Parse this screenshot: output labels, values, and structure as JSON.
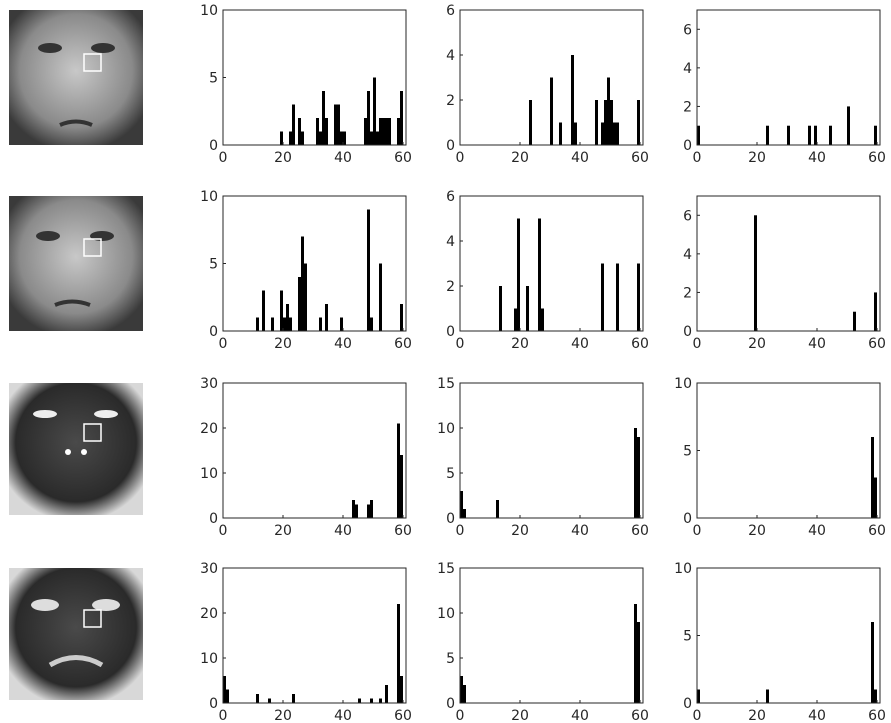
{
  "chart_data": [
    {
      "type": "bar",
      "color": "#000000",
      "x": [
        19,
        22,
        23,
        25,
        26,
        31,
        32,
        33,
        34,
        37,
        38,
        39,
        40,
        47,
        48,
        49,
        50,
        51,
        52,
        53,
        54,
        55,
        58,
        59
      ],
      "values": [
        1,
        1,
        3,
        2,
        1,
        2,
        1,
        4,
        2,
        3,
        3,
        1,
        1,
        2,
        4,
        1,
        5,
        1,
        2,
        2,
        2,
        2,
        2,
        4
      ],
      "xlim": [
        0,
        61
      ],
      "xticks": [
        0,
        20,
        40,
        60
      ],
      "ylim": [
        0,
        10
      ],
      "yticks": [
        0,
        5,
        10
      ]
    },
    {
      "type": "bar",
      "color": "#000000",
      "x": [
        23,
        30,
        33,
        37,
        38,
        45,
        47,
        48,
        49,
        50,
        51,
        52,
        59
      ],
      "values": [
        2,
        3,
        1,
        4,
        1,
        2,
        1,
        2,
        3,
        2,
        1,
        1,
        2
      ],
      "xlim": [
        0,
        61
      ],
      "xticks": [
        0,
        20,
        40,
        60
      ],
      "ylim": [
        0,
        6
      ],
      "yticks": [
        0,
        2,
        4,
        6
      ]
    },
    {
      "type": "bar",
      "color": "#000000",
      "x": [
        0,
        23,
        30,
        37,
        39,
        44,
        50,
        59
      ],
      "values": [
        1,
        1,
        1,
        1,
        1,
        1,
        2,
        1
      ],
      "xlim": [
        0,
        61
      ],
      "xticks": [
        0,
        20,
        40,
        60
      ],
      "ylim": [
        0,
        7
      ],
      "yticks": [
        0,
        2,
        4,
        6
      ]
    },
    {
      "type": "bar",
      "color": "#000000",
      "x": [
        11,
        13,
        16,
        19,
        20,
        21,
        22,
        25,
        26,
        27,
        32,
        34,
        39,
        48,
        49,
        52,
        59
      ],
      "values": [
        1,
        3,
        1,
        3,
        1,
        2,
        1,
        4,
        7,
        5,
        1,
        2,
        1,
        9,
        1,
        5,
        2
      ],
      "xlim": [
        0,
        61
      ],
      "xticks": [
        0,
        20,
        40,
        60
      ],
      "ylim": [
        0,
        10
      ],
      "yticks": [
        0,
        5,
        10
      ]
    },
    {
      "type": "bar",
      "color": "#000000",
      "x": [
        13,
        18,
        19,
        22,
        26,
        27,
        47,
        52,
        59
      ],
      "values": [
        2,
        1,
        5,
        2,
        5,
        1,
        3,
        3,
        3
      ],
      "xlim": [
        0,
        61
      ],
      "xticks": [
        0,
        20,
        40,
        60
      ],
      "ylim": [
        0,
        6
      ],
      "yticks": [
        0,
        2,
        4,
        6
      ]
    },
    {
      "type": "bar",
      "color": "#000000",
      "x": [
        19,
        52,
        59
      ],
      "values": [
        6,
        1,
        2
      ],
      "xlim": [
        0,
        61
      ],
      "xticks": [
        0,
        20,
        40,
        60
      ],
      "ylim": [
        0,
        7
      ],
      "yticks": [
        0,
        2,
        4,
        6
      ]
    },
    {
      "type": "bar",
      "color": "#000000",
      "x": [
        43,
        44,
        48,
        49,
        58,
        59
      ],
      "values": [
        4,
        3,
        3,
        4,
        21,
        14
      ],
      "xlim": [
        0,
        61
      ],
      "xticks": [
        0,
        20,
        40,
        60
      ],
      "ylim": [
        0,
        30
      ],
      "yticks": [
        0,
        10,
        20,
        30
      ]
    },
    {
      "type": "bar",
      "color": "#000000",
      "x": [
        0,
        1,
        12,
        58,
        59
      ],
      "values": [
        3,
        1,
        2,
        10,
        9
      ],
      "xlim": [
        0,
        61
      ],
      "xticks": [
        0,
        20,
        40,
        60
      ],
      "ylim": [
        0,
        15
      ],
      "yticks": [
        0,
        5,
        10,
        15
      ]
    },
    {
      "type": "bar",
      "color": "#000000",
      "x": [
        58,
        59
      ],
      "values": [
        6,
        3
      ],
      "xlim": [
        0,
        61
      ],
      "xticks": [
        0,
        20,
        40,
        60
      ],
      "ylim": [
        0,
        10
      ],
      "yticks": [
        0,
        5,
        10
      ]
    },
    {
      "type": "bar",
      "color": "#000000",
      "x": [
        0,
        1,
        11,
        15,
        23,
        45,
        49,
        52,
        54,
        58,
        59
      ],
      "values": [
        6,
        3,
        2,
        1,
        2,
        1,
        1,
        1,
        4,
        22,
        6
      ],
      "xlim": [
        0,
        61
      ],
      "xticks": [
        0,
        20,
        40,
        60
      ],
      "ylim": [
        0,
        30
      ],
      "yticks": [
        0,
        10,
        20,
        30
      ]
    },
    {
      "type": "bar",
      "color": "#000000",
      "x": [
        0,
        1,
        58,
        59
      ],
      "values": [
        3,
        2,
        11,
        9
      ],
      "xlim": [
        0,
        61
      ],
      "xticks": [
        0,
        20,
        40,
        60
      ],
      "ylim": [
        0,
        15
      ],
      "yticks": [
        0,
        5,
        10,
        15
      ]
    },
    {
      "type": "bar",
      "color": "#000000",
      "x": [
        0,
        23,
        58,
        59
      ],
      "values": [
        1,
        1,
        6,
        1
      ],
      "xlim": [
        0,
        61
      ],
      "xticks": [
        0,
        20,
        40,
        60
      ],
      "ylim": [
        0,
        10
      ],
      "yticks": [
        0,
        5,
        10
      ]
    }
  ]
}
